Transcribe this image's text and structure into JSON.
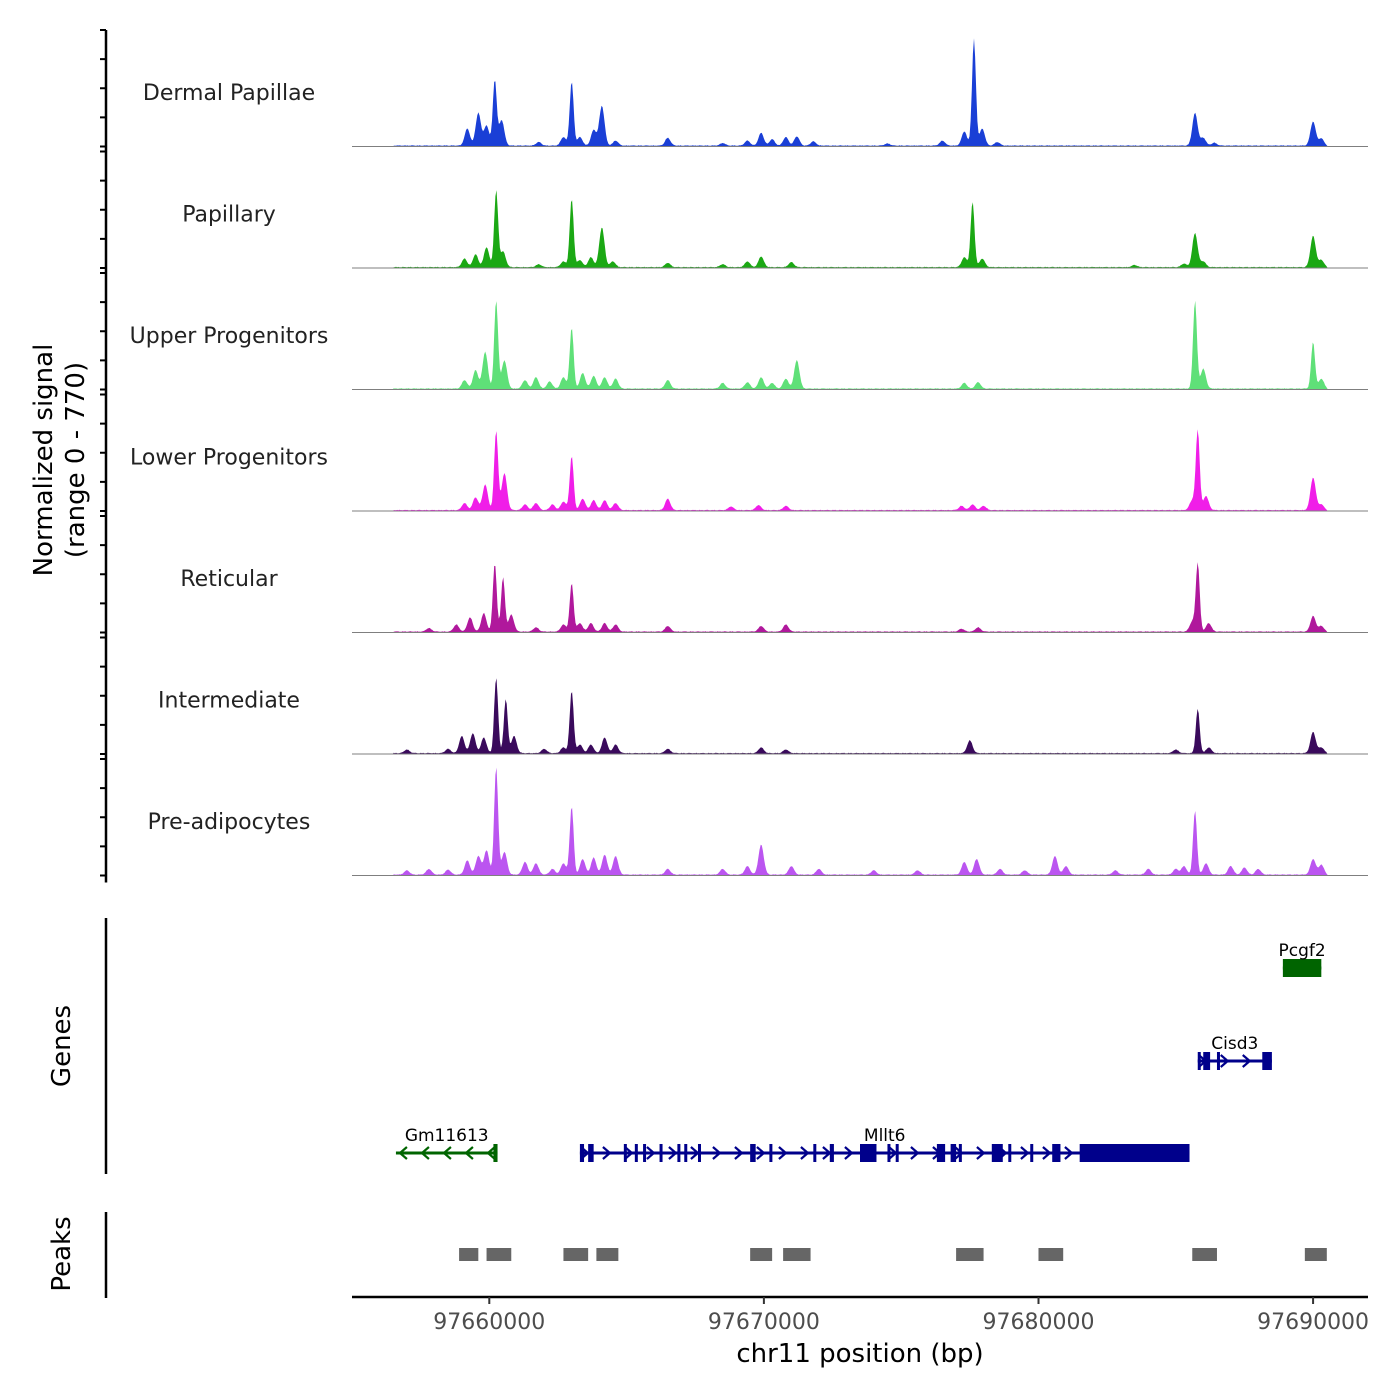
{
  "chart_data": {
    "type": "area",
    "chromosome": "chr11",
    "xlabel": "chr11 position (bp)",
    "xlim": [
      97655000,
      97692000
    ],
    "x_ticks": [
      {
        "value": 97660000,
        "label": "97660000"
      },
      {
        "value": 97670000,
        "label": "97670000"
      },
      {
        "value": 97680000,
        "label": "97680000"
      },
      {
        "value": 97690000,
        "label": "97690000"
      }
    ],
    "ylabel_line1": "Normalized signal",
    "ylabel_line2": "(range 0 - 770)",
    "ylim": [
      0,
      770
    ],
    "genes_label": "Genes",
    "peaks_label": "Peaks",
    "tracks": [
      {
        "name": "Dermal Papillae",
        "color": "#1a3fd6",
        "peaks": [
          [
            97659200,
            120
          ],
          [
            97659600,
            230
          ],
          [
            97659900,
            140
          ],
          [
            97660200,
            460
          ],
          [
            97660450,
            180
          ],
          [
            97661800,
            25
          ],
          [
            97662700,
            60
          ],
          [
            97663000,
            450
          ],
          [
            97663300,
            60
          ],
          [
            97663800,
            110
          ],
          [
            97664100,
            280
          ],
          [
            97664600,
            35
          ],
          [
            97666500,
            55
          ],
          [
            97668500,
            18
          ],
          [
            97669400,
            35
          ],
          [
            97669900,
            90
          ],
          [
            97670300,
            45
          ],
          [
            97670800,
            60
          ],
          [
            97671200,
            65
          ],
          [
            97671800,
            30
          ],
          [
            97674500,
            15
          ],
          [
            97676500,
            35
          ],
          [
            97677300,
            100
          ],
          [
            97677650,
            750
          ],
          [
            97677950,
            120
          ],
          [
            97678500,
            25
          ],
          [
            97685700,
            230
          ],
          [
            97686000,
            55
          ],
          [
            97686400,
            20
          ],
          [
            97690000,
            170
          ],
          [
            97690300,
            50
          ]
        ]
      },
      {
        "name": "Papillary",
        "color": "#1ba814",
        "peaks": [
          [
            97659100,
            60
          ],
          [
            97659500,
            90
          ],
          [
            97659900,
            140
          ],
          [
            97660250,
            540
          ],
          [
            97660500,
            110
          ],
          [
            97661800,
            20
          ],
          [
            97662700,
            40
          ],
          [
            97663000,
            480
          ],
          [
            97663300,
            50
          ],
          [
            97663700,
            70
          ],
          [
            97664100,
            280
          ],
          [
            97664500,
            40
          ],
          [
            97666500,
            30
          ],
          [
            97668500,
            20
          ],
          [
            97669400,
            40
          ],
          [
            97669900,
            75
          ],
          [
            97671000,
            35
          ],
          [
            97677300,
            70
          ],
          [
            97677600,
            460
          ],
          [
            97677950,
            60
          ],
          [
            97683500,
            15
          ],
          [
            97685300,
            25
          ],
          [
            97685700,
            240
          ],
          [
            97686000,
            40
          ],
          [
            97690000,
            220
          ],
          [
            97690300,
            50
          ]
        ]
      },
      {
        "name": "Upper Progenitors",
        "color": "#5fe078",
        "peaks": [
          [
            97659100,
            60
          ],
          [
            97659500,
            130
          ],
          [
            97659850,
            260
          ],
          [
            97660250,
            620
          ],
          [
            97660550,
            200
          ],
          [
            97661300,
            60
          ],
          [
            97661700,
            80
          ],
          [
            97662200,
            50
          ],
          [
            97662700,
            80
          ],
          [
            97663000,
            430
          ],
          [
            97663400,
            110
          ],
          [
            97663800,
            90
          ],
          [
            97664200,
            80
          ],
          [
            97664600,
            70
          ],
          [
            97666500,
            60
          ],
          [
            97668500,
            40
          ],
          [
            97669400,
            45
          ],
          [
            97669900,
            80
          ],
          [
            97670300,
            40
          ],
          [
            97670800,
            70
          ],
          [
            97671200,
            200
          ],
          [
            97677300,
            40
          ],
          [
            97677800,
            45
          ],
          [
            97685700,
            620
          ],
          [
            97686000,
            140
          ],
          [
            97690000,
            330
          ],
          [
            97690300,
            70
          ]
        ]
      },
      {
        "name": "Lower Progenitors",
        "color": "#f01ee8",
        "peaks": [
          [
            97659100,
            50
          ],
          [
            97659500,
            90
          ],
          [
            97659850,
            180
          ],
          [
            97660250,
            560
          ],
          [
            97660550,
            260
          ],
          [
            97661300,
            40
          ],
          [
            97661700,
            50
          ],
          [
            97662300,
            40
          ],
          [
            97662700,
            60
          ],
          [
            97663000,
            380
          ],
          [
            97663400,
            80
          ],
          [
            97663800,
            70
          ],
          [
            97664200,
            70
          ],
          [
            97664600,
            50
          ],
          [
            97666500,
            80
          ],
          [
            97668800,
            25
          ],
          [
            97669800,
            35
          ],
          [
            97670800,
            30
          ],
          [
            97677200,
            30
          ],
          [
            97677600,
            40
          ],
          [
            97678000,
            30
          ],
          [
            97685600,
            70
          ],
          [
            97685800,
            560
          ],
          [
            97686100,
            100
          ],
          [
            97690000,
            230
          ],
          [
            97690300,
            40
          ]
        ]
      },
      {
        "name": "Reticular",
        "color": "#b0189c",
        "peaks": [
          [
            97657800,
            25
          ],
          [
            97658800,
            50
          ],
          [
            97659300,
            100
          ],
          [
            97659800,
            130
          ],
          [
            97660200,
            480
          ],
          [
            97660500,
            380
          ],
          [
            97660800,
            120
          ],
          [
            97661700,
            30
          ],
          [
            97662700,
            50
          ],
          [
            97663000,
            340
          ],
          [
            97663300,
            60
          ],
          [
            97663700,
            60
          ],
          [
            97664200,
            60
          ],
          [
            97664600,
            50
          ],
          [
            97666500,
            40
          ],
          [
            97669900,
            40
          ],
          [
            97670800,
            50
          ],
          [
            97677200,
            20
          ],
          [
            97677800,
            30
          ],
          [
            97685600,
            70
          ],
          [
            97685800,
            480
          ],
          [
            97686200,
            60
          ],
          [
            97690000,
            110
          ],
          [
            97690300,
            40
          ]
        ]
      },
      {
        "name": "Intermediate",
        "color": "#3a0a5c",
        "peaks": [
          [
            97657000,
            25
          ],
          [
            97658500,
            30
          ],
          [
            97659000,
            120
          ],
          [
            97659400,
            140
          ],
          [
            97659800,
            110
          ],
          [
            97660250,
            530
          ],
          [
            97660600,
            380
          ],
          [
            97660900,
            120
          ],
          [
            97662000,
            30
          ],
          [
            97662700,
            40
          ],
          [
            97663000,
            440
          ],
          [
            97663300,
            60
          ],
          [
            97663700,
            60
          ],
          [
            97664200,
            110
          ],
          [
            97664600,
            60
          ],
          [
            97666500,
            30
          ],
          [
            97669900,
            40
          ],
          [
            97670800,
            25
          ],
          [
            97677500,
            90
          ],
          [
            97685000,
            25
          ],
          [
            97685800,
            310
          ],
          [
            97686200,
            40
          ],
          [
            97690000,
            150
          ],
          [
            97690300,
            40
          ]
        ]
      },
      {
        "name": "Pre-adipocytes",
        "color": "#bb55f0",
        "peaks": [
          [
            97657000,
            30
          ],
          [
            97657800,
            40
          ],
          [
            97658500,
            35
          ],
          [
            97659200,
            100
          ],
          [
            97659600,
            130
          ],
          [
            97659900,
            170
          ],
          [
            97660250,
            760
          ],
          [
            97660550,
            160
          ],
          [
            97661300,
            90
          ],
          [
            97661700,
            80
          ],
          [
            97662300,
            40
          ],
          [
            97662700,
            80
          ],
          [
            97663000,
            480
          ],
          [
            97663400,
            110
          ],
          [
            97663800,
            120
          ],
          [
            97664200,
            140
          ],
          [
            97664600,
            130
          ],
          [
            97666500,
            40
          ],
          [
            97668500,
            40
          ],
          [
            97669400,
            60
          ],
          [
            97669900,
            210
          ],
          [
            97671000,
            60
          ],
          [
            97672000,
            40
          ],
          [
            97674000,
            30
          ],
          [
            97675600,
            30
          ],
          [
            97677300,
            90
          ],
          [
            97677750,
            110
          ],
          [
            97678600,
            40
          ],
          [
            97679500,
            30
          ],
          [
            97680600,
            130
          ],
          [
            97681000,
            60
          ],
          [
            97682800,
            30
          ],
          [
            97684000,
            40
          ],
          [
            97685000,
            40
          ],
          [
            97685300,
            60
          ],
          [
            97685700,
            450
          ],
          [
            97686100,
            80
          ],
          [
            97687000,
            60
          ],
          [
            97687500,
            50
          ],
          [
            97688000,
            40
          ],
          [
            97690000,
            110
          ],
          [
            97690300,
            70
          ]
        ]
      }
    ],
    "genes": [
      {
        "name": "Pcgf2",
        "strand": "-",
        "start": 97688900,
        "end": 97690300,
        "color": "#006400",
        "row": 1,
        "exons": [
          [
            97688900,
            97690300
          ]
        ]
      },
      {
        "name": "Cisd3",
        "strand": "+",
        "start": 97685800,
        "end": 97688500,
        "color": "#00008b",
        "row": 2,
        "exons": [
          [
            97685800,
            97685900
          ],
          [
            97686000,
            97686250
          ],
          [
            97686500,
            97686600
          ],
          [
            97688150,
            97688500
          ]
        ]
      },
      {
        "name": "Gm11613",
        "strand": "-",
        "start": 97656600,
        "end": 97660300,
        "color": "#006400",
        "row": 3,
        "exons": [
          [
            97660150,
            97660300
          ]
        ]
      },
      {
        "name": "Mllt6",
        "strand": "+",
        "start": 97663300,
        "end": 97685500,
        "color": "#00008b",
        "row": 3,
        "exons": [
          [
            97663300,
            97663450
          ],
          [
            97663600,
            97663800
          ],
          [
            97664900,
            97664980
          ],
          [
            97665300,
            97665380
          ],
          [
            97665600,
            97665700
          ],
          [
            97666200,
            97666280
          ],
          [
            97666850,
            97666950
          ],
          [
            97667100,
            97667200
          ],
          [
            97667600,
            97667700
          ],
          [
            97669500,
            97669700
          ],
          [
            97670200,
            97670300
          ],
          [
            97671800,
            97671900
          ],
          [
            97672400,
            97672550
          ],
          [
            97673500,
            97674100
          ],
          [
            97674500,
            97674600
          ],
          [
            97674800,
            97674900
          ],
          [
            97676300,
            97676600
          ],
          [
            97676800,
            97677000
          ],
          [
            97677100,
            97677200
          ],
          [
            97678300,
            97678700
          ],
          [
            97678900,
            97679000
          ],
          [
            97679700,
            97679800
          ],
          [
            97680500,
            97680800
          ],
          [
            97681500,
            97685500
          ]
        ]
      }
    ],
    "peaks": [
      [
        97658900,
        97659600
      ],
      [
        97659900,
        97660800
      ],
      [
        97662700,
        97663600
      ],
      [
        97663900,
        97664700
      ],
      [
        97669500,
        97670300
      ],
      [
        97670700,
        97671700
      ],
      [
        97677000,
        97678000
      ],
      [
        97680000,
        97680900
      ],
      [
        97685600,
        97686500
      ],
      [
        97689700,
        97690500
      ]
    ]
  }
}
